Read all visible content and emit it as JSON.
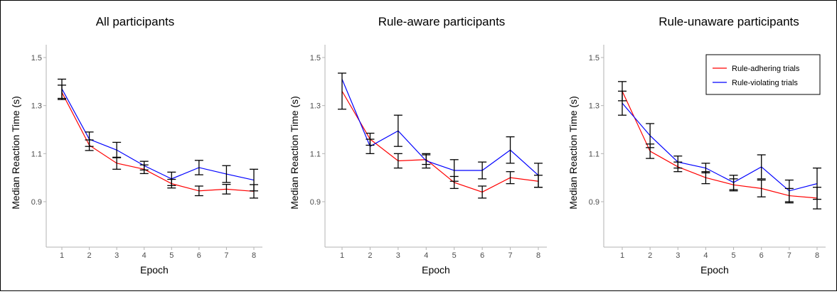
{
  "chart_data": [
    {
      "type": "line",
      "title": "All participants",
      "xlabel": "Epoch",
      "ylabel": "Median Reaction Time (s)",
      "categories": [
        1,
        2,
        3,
        4,
        5,
        6,
        7,
        8
      ],
      "ylim": [
        0.7,
        1.53
      ],
      "yticks": [
        0.9,
        1.1,
        1.3,
        1.5
      ],
      "series": [
        {
          "name": "Rule-adhering trials",
          "color": "#ff0000",
          "values": [
            1.355,
            1.135,
            1.06,
            1.035,
            0.975,
            0.945,
            0.952,
            0.943
          ],
          "err": [
            0.03,
            0.022,
            0.025,
            0.018,
            0.018,
            0.02,
            0.02,
            0.028
          ]
        },
        {
          "name": "Rule-violating trials",
          "color": "#0000ff",
          "values": [
            1.37,
            1.16,
            1.115,
            1.05,
            0.995,
            1.042,
            1.015,
            0.99
          ],
          "err": [
            0.04,
            0.03,
            0.032,
            0.018,
            0.028,
            0.03,
            0.035,
            0.045
          ]
        }
      ]
    },
    {
      "type": "line",
      "title": "Rule-aware participants",
      "xlabel": "Epoch",
      "ylabel": "Median Reaction Time (s)",
      "categories": [
        1,
        2,
        3,
        4,
        5,
        6,
        7,
        8
      ],
      "ylim": [
        0.7,
        1.53
      ],
      "yticks": [
        0.9,
        1.1,
        1.3,
        1.5
      ],
      "series": [
        {
          "name": "Rule-adhering trials",
          "color": "#ff0000",
          "values": [
            1.36,
            1.16,
            1.07,
            1.075,
            0.98,
            0.94,
            1.0,
            0.985
          ],
          "err": [
            0.075,
            0.025,
            0.03,
            0.02,
            0.025,
            0.025,
            0.025,
            0.025
          ]
        },
        {
          "name": "Rule-violating trials",
          "color": "#0000ff",
          "values": [
            1.41,
            1.13,
            1.195,
            1.07,
            1.03,
            1.03,
            1.115,
            1.01
          ],
          "err": [
            0.0,
            0.03,
            0.065,
            0.03,
            0.045,
            0.035,
            0.055,
            0.05
          ]
        }
      ]
    },
    {
      "type": "line",
      "title": "Rule-unaware participants",
      "xlabel": "Epoch",
      "ylabel": "Median Reaction Time (s)",
      "categories": [
        1,
        2,
        3,
        4,
        5,
        6,
        7,
        8
      ],
      "ylim": [
        0.7,
        1.53
      ],
      "yticks": [
        0.9,
        1.1,
        1.3,
        1.5
      ],
      "legend": "top-right",
      "series": [
        {
          "name": "Rule-adhering trials",
          "color": "#ff0000",
          "values": [
            1.36,
            1.11,
            1.045,
            1.0,
            0.97,
            0.955,
            0.925,
            0.915
          ],
          "err": [
            0.04,
            0.03,
            0.02,
            0.025,
            0.025,
            0.035,
            0.03,
            0.045
          ]
        },
        {
          "name": "Rule-violating trials",
          "color": "#0000ff",
          "values": [
            1.31,
            1.175,
            1.065,
            1.04,
            0.98,
            1.045,
            0.945,
            0.975
          ],
          "err": [
            0.05,
            0.05,
            0.025,
            0.02,
            0.03,
            0.05,
            0.045,
            0.065
          ]
        }
      ]
    }
  ]
}
